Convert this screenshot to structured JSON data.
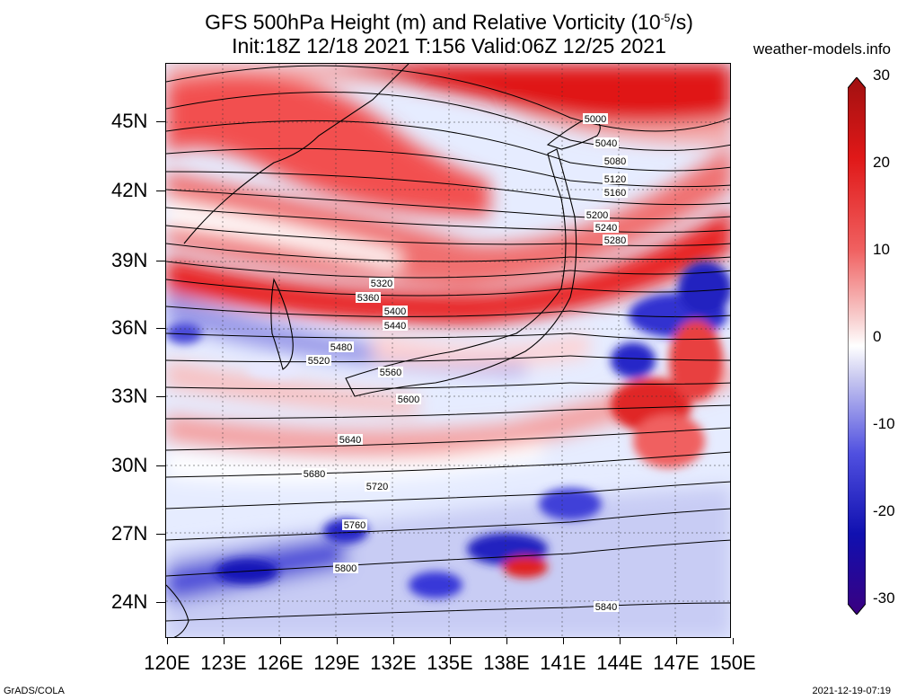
{
  "title": {
    "line1": "GFS 500hPa Height (m) and Relative Vorticity (10",
    "line1_sup": "-5",
    "line1_end": "/s)",
    "line2": "Init:18Z 12/18 2021 T:156 Valid:06Z 12/25 2021"
  },
  "site": "weather-models.info",
  "y_labels": [
    "45N",
    "42N",
    "39N",
    "36N",
    "33N",
    "30N",
    "27N",
    "24N"
  ],
  "x_labels": [
    "120E",
    "123E",
    "126E",
    "129E",
    "132E",
    "135E",
    "138E",
    "141E",
    "144E",
    "147E",
    "150E"
  ],
  "colorbar": {
    "labels": [
      "30",
      "20",
      "10",
      "0",
      "-10",
      "-20",
      "-30"
    ],
    "colors": [
      "#a01010",
      "#e01818",
      "#f06060",
      "#f8b8b8",
      "#ffffff",
      "#b8b8f0",
      "#5050e0",
      "#1010b0",
      "#3a0080"
    ]
  },
  "contour_labels": [
    "5000",
    "5040",
    "5080",
    "5120",
    "5160",
    "5200",
    "5240",
    "5280",
    "5320",
    "5360",
    "5400",
    "5440",
    "5480",
    "5520",
    "5560",
    "5600",
    "5640",
    "5680",
    "5720",
    "5760",
    "5800",
    "5840"
  ],
  "footer": {
    "left": "GrADS/COLA",
    "right": "2021-12-19-07:19"
  },
  "chart_data": {
    "type": "map",
    "field": "500hPa relative vorticity (10^-5/s) with height contours (m)",
    "lon_range": [
      120,
      150
    ],
    "lat_range": [
      22.5,
      47.5
    ],
    "vorticity_scale": [
      -30,
      30
    ],
    "contour_interval_m": 40
  }
}
